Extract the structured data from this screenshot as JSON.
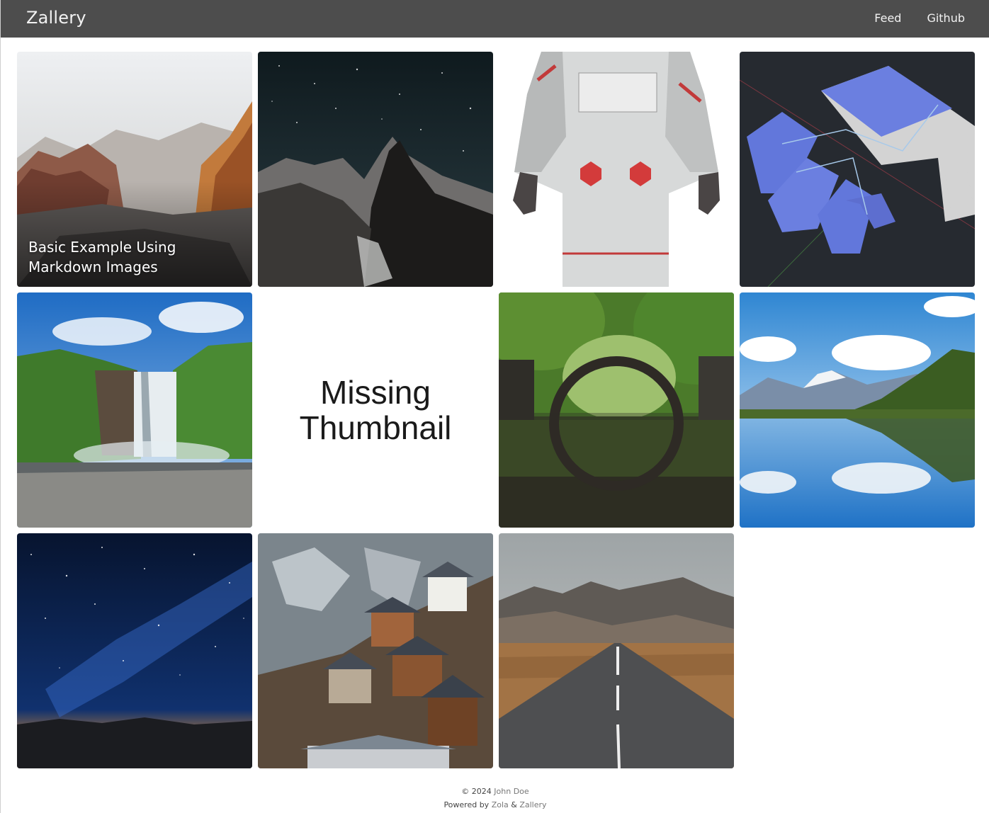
{
  "header": {
    "brand": "Zallery",
    "nav": [
      "Feed",
      "Github"
    ]
  },
  "gallery": {
    "tiles": [
      {
        "title": "Basic Example Using Markdown Images",
        "subject": "canyon"
      },
      {
        "title": "",
        "subject": "night-mountain"
      },
      {
        "title": "",
        "subject": "astronaut"
      },
      {
        "title": "",
        "subject": "blue-hand-3d"
      },
      {
        "title": "",
        "subject": "waterfall"
      },
      {
        "title": "",
        "subject": "missing-thumbnail",
        "placeholder_line1": "Missing",
        "placeholder_line2": "Thumbnail"
      },
      {
        "title": "",
        "subject": "stone-arch-bridge"
      },
      {
        "title": "",
        "subject": "mountain-lake-reflection"
      },
      {
        "title": "",
        "subject": "milky-way"
      },
      {
        "title": "",
        "subject": "alpine-village"
      },
      {
        "title": "",
        "subject": "mountain-road"
      }
    ]
  },
  "footer": {
    "copyright": "© 2024",
    "author": "John Doe",
    "powered_by": "Powered by",
    "zola": "Zola",
    "amp": "&",
    "zallery": "Zallery"
  },
  "colors": {
    "navbar": "#4d4d4d",
    "nav_text": "#f2f2f2",
    "footer_link": "#777777"
  }
}
